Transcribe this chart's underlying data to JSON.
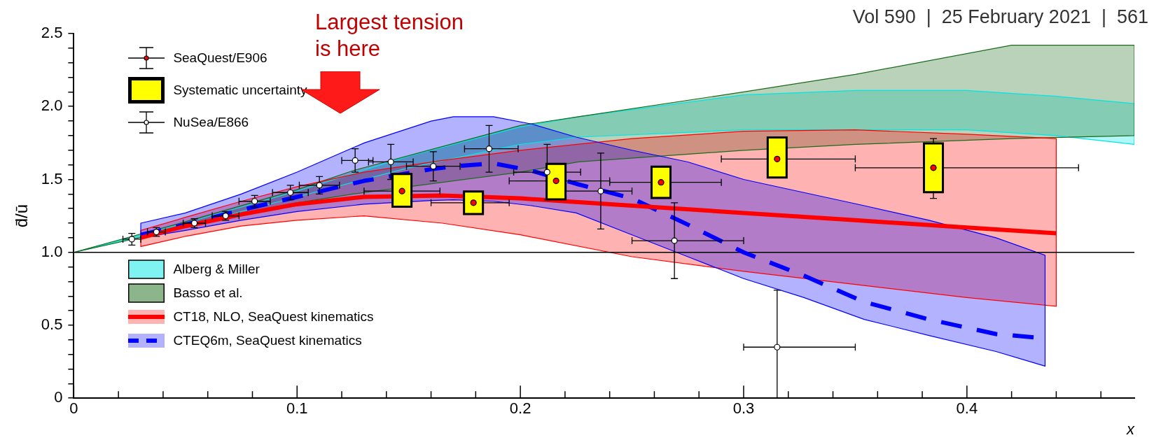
{
  "chart_data": {
    "type": "scatter",
    "xlabel": "x",
    "ylabel": "d̄/ū",
    "xlim": [
      0,
      0.475
    ],
    "ylim": [
      0,
      2.5
    ],
    "xticks": [
      0,
      {
        "value": 0.02,
        "label": null
      },
      {
        "value": 0.04,
        "label": null
      },
      {
        "value": 0.06,
        "label": null
      },
      {
        "value": 0.08,
        "label": null
      },
      0.1,
      {
        "value": 0.12,
        "label": null
      },
      {
        "value": 0.14,
        "label": null
      },
      {
        "value": 0.16,
        "label": null
      },
      {
        "value": 0.18,
        "label": null
      },
      0.2,
      {
        "value": 0.22,
        "label": null
      },
      {
        "value": 0.24,
        "label": null
      },
      {
        "value": 0.26,
        "label": null
      },
      {
        "value": 0.28,
        "label": null
      },
      0.3,
      {
        "value": 0.32,
        "label": null
      },
      {
        "value": 0.34,
        "label": null
      },
      {
        "value": 0.36,
        "label": null
      },
      {
        "value": 0.38,
        "label": null
      },
      0.4,
      {
        "value": 0.42,
        "label": null
      },
      {
        "value": 0.44,
        "label": null
      },
      {
        "value": 0.46,
        "label": null
      }
    ],
    "yticks": [
      0,
      {
        "value": 0.1,
        "label": null
      },
      {
        "value": 0.2,
        "label": null
      },
      {
        "value": 0.3,
        "label": null
      },
      {
        "value": 0.4,
        "label": null
      },
      0.5,
      {
        "value": 0.6,
        "label": null
      },
      {
        "value": 0.7,
        "label": null
      },
      {
        "value": 0.8,
        "label": null
      },
      {
        "value": 0.9,
        "label": null
      },
      {
        "value": 1,
        "label": "1.0"
      },
      {
        "value": 1.1,
        "label": null
      },
      {
        "value": 1.2,
        "label": null
      },
      {
        "value": 1.3,
        "label": null
      },
      {
        "value": 1.4,
        "label": null
      },
      1.5,
      {
        "value": 1.6,
        "label": null
      },
      {
        "value": 1.7,
        "label": null
      },
      {
        "value": 1.8,
        "label": null
      },
      {
        "value": 1.9,
        "label": null
      },
      {
        "value": 2,
        "label": "2.0"
      },
      {
        "value": 2.1,
        "label": null
      },
      {
        "value": 2.2,
        "label": null
      },
      {
        "value": 2.3,
        "label": null
      },
      {
        "value": 2.4,
        "label": null
      },
      2.5
    ],
    "grid": false,
    "legend": "left",
    "ref_lines": [
      {
        "axis": "y",
        "value": 1,
        "color": "#000000"
      }
    ],
    "annotations": [
      "Largest tension is here",
      "Vol 590  |  25 February 2021  |  561"
    ],
    "series": [
      {
        "name": "SeaQuest/E906",
        "color": "#ff0000",
        "marker": "circle",
        "x": [
          0.147,
          0.179,
          0.216,
          0.263,
          0.315,
          0.385
        ],
        "values": [
          1.42,
          1.34,
          1.49,
          1.48,
          1.64,
          1.58
        ],
        "errors": [
          null,
          null,
          null,
          null,
          null,
          [
            1.37,
            1.78
          ]
        ],
        "xerrors": [
          [
            0.13,
            0.164
          ],
          [
            0.16,
            0.195
          ],
          [
            0.195,
            0.24
          ],
          [
            0.24,
            0.29
          ],
          [
            0.29,
            0.35
          ],
          [
            0.35,
            0.45
          ]
        ]
      },
      {
        "name": "Systematic uncertainty",
        "type": "bar",
        "color": "#ffff00",
        "x": [
          0.147,
          0.179,
          0.216,
          0.263,
          0.315,
          0.385
        ],
        "base": [
          1.32,
          1.27,
          1.37,
          1.38,
          1.52,
          1.42
        ],
        "values": [
          0.21,
          0.14,
          0.23,
          0.2,
          0.26,
          0.32
        ]
      },
      {
        "name": "NuSea/E866",
        "color": "#ffffff",
        "marker": "circle",
        "x": [
          0.026,
          0.037,
          0.054,
          0.068,
          0.081,
          0.097,
          0.11,
          0.126,
          0.142,
          0.161,
          0.186,
          0.212,
          0.236,
          0.269,
          0.315
        ],
        "values": [
          1.09,
          1.14,
          1.2,
          1.25,
          1.35,
          1.41,
          1.46,
          1.63,
          1.62,
          1.59,
          1.71,
          1.55,
          1.42,
          1.08,
          0.35
        ],
        "errors": [
          0.04,
          0.03,
          0.03,
          0.03,
          0.04,
          0.05,
          0.06,
          0.08,
          0.12,
          0.1,
          0.16,
          0.19,
          0.26,
          0.26,
          [
            0,
            0.74
          ]
        ],
        "xerrors": [
          0.004,
          0.004,
          0.005,
          0.006,
          0.007,
          0.008,
          0.009,
          [
            0.12,
            0.134
          ],
          0.01,
          0.012,
          [
            0.175,
            0.199
          ],
          0.015,
          [
            0.22,
            0.25
          ],
          [
            0.25,
            0.3
          ],
          [
            0.3,
            0.35
          ]
        ]
      },
      {
        "name": "Alberg & Miller",
        "type": "line",
        "color": "#00e5e5",
        "x": [
          0,
          0.05,
          0.1,
          0.15,
          0.2,
          0.226,
          0.3,
          0.35,
          0.4,
          0.44,
          0.475
        ],
        "values": [
          null,
          null,
          null,
          null,
          null,
          null,
          null,
          null,
          null,
          null,
          null
        ],
        "lower": [
          1.0,
          1.18,
          1.38,
          1.58,
          1.74,
          1.79,
          1.84,
          1.84,
          1.84,
          1.8,
          1.74
        ],
        "upper": [
          1.0,
          1.2,
          1.42,
          1.66,
          1.86,
          1.93,
          2.08,
          2.11,
          2.11,
          2.07,
          2.02
        ]
      },
      {
        "name": "Basso et al.",
        "type": "line",
        "color": "#1a6b1a",
        "x": [
          0,
          0.05,
          0.1,
          0.125,
          0.2,
          0.226,
          0.3,
          0.35,
          0.42,
          0.475
        ],
        "values": [
          null,
          null,
          null,
          null,
          null,
          null,
          null,
          null,
          null,
          null
        ],
        "lower": [
          1.0,
          1.17,
          1.34,
          1.4,
          1.55,
          1.62,
          1.7,
          1.74,
          1.78,
          1.8
        ],
        "upper": [
          1.0,
          1.21,
          1.43,
          1.56,
          1.87,
          1.93,
          2.1,
          2.22,
          2.42,
          2.42
        ]
      },
      {
        "name": "CT18, NLO, SeaQuest kinematics",
        "type": "line",
        "color": "#ff0000",
        "line_style": "solid",
        "x": [
          0.03,
          0.05,
          0.075,
          0.1,
          0.13,
          0.165,
          0.2,
          0.25,
          0.3,
          0.35,
          0.4,
          0.44
        ],
        "values": [
          1.1,
          1.18,
          1.26,
          1.33,
          1.38,
          1.39,
          1.37,
          1.32,
          1.27,
          1.22,
          1.17,
          1.13
        ],
        "lower": [
          1.04,
          1.11,
          1.18,
          1.22,
          1.25,
          1.2,
          1.12,
          0.97,
          0.87,
          0.78,
          0.69,
          0.63
        ],
        "upper": [
          1.15,
          1.24,
          1.35,
          1.45,
          1.55,
          1.63,
          1.7,
          1.78,
          1.83,
          1.84,
          1.81,
          1.78
        ]
      },
      {
        "name": "CTEQ6m, SeaQuest kinematics",
        "type": "line",
        "color": "#0000ff",
        "line_style": "dashed",
        "x": [
          0.03,
          0.05,
          0.075,
          0.1,
          0.13,
          0.16,
          0.17,
          0.188,
          0.205,
          0.225,
          0.25,
          0.275,
          0.3,
          0.327,
          0.354,
          0.383,
          0.413,
          0.435
        ],
        "values": [
          1.12,
          1.19,
          1.29,
          1.38,
          1.49,
          1.57,
          1.59,
          1.61,
          1.56,
          1.47,
          1.37,
          1.19,
          1.0,
          0.84,
          0.66,
          0.54,
          0.44,
          0.41
        ],
        "lower": [
          1.1,
          1.15,
          1.22,
          1.28,
          1.33,
          1.355,
          1.36,
          1.35,
          1.32,
          1.27,
          1.12,
          0.97,
          0.82,
          0.69,
          0.54,
          0.43,
          0.32,
          0.22
        ],
        "upper": [
          1.2,
          1.27,
          1.4,
          1.55,
          1.75,
          1.9,
          1.93,
          1.93,
          1.88,
          1.79,
          1.7,
          1.62,
          1.5,
          1.41,
          1.32,
          1.22,
          1.1,
          0.98
        ]
      }
    ]
  }
}
